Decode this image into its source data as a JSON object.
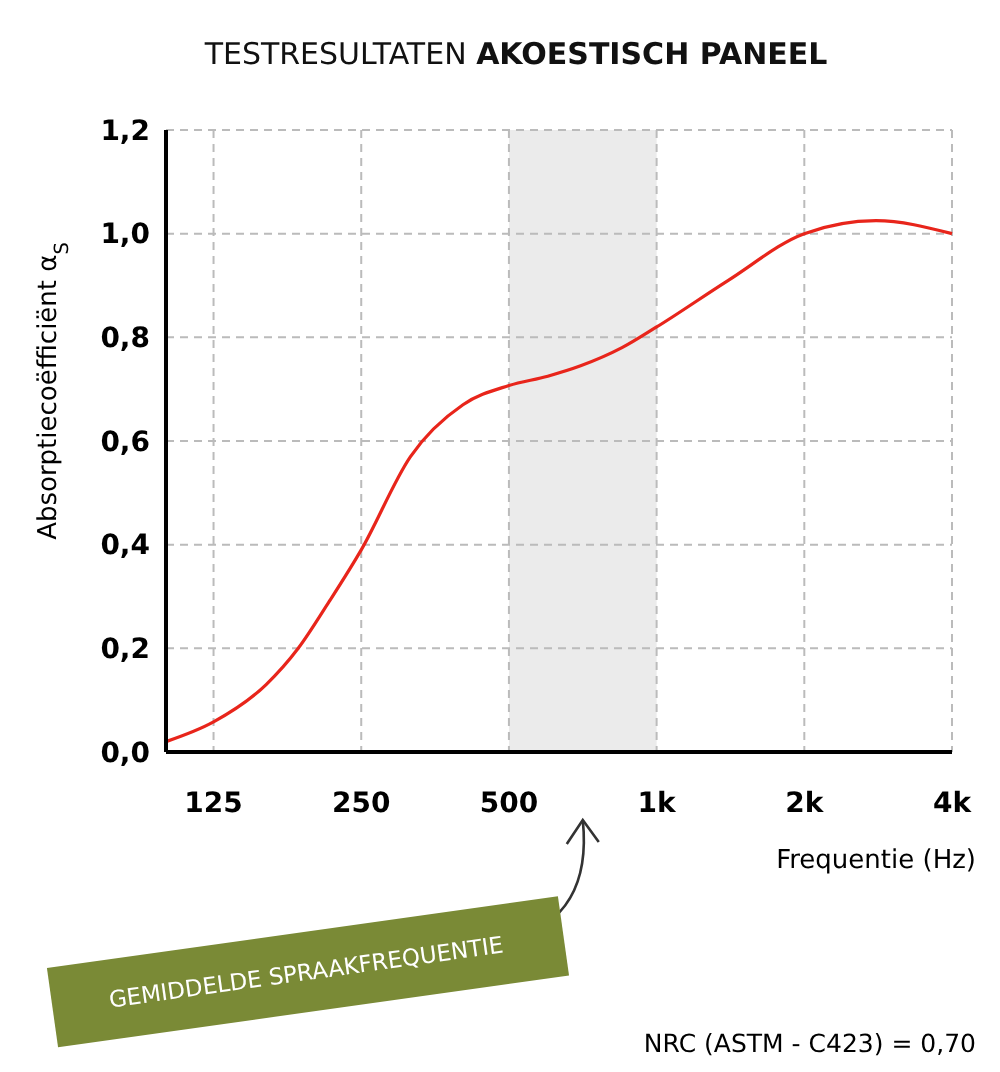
{
  "chart_data": {
    "type": "line",
    "title": "TESTRESULTATEN AKOESTISCH PANEEL",
    "xlabel": "Frequentie (Hz)",
    "ylabel": "Absorptiecoëfficiënt α$_{S}$",
    "log": "x",
    "grid": true,
    "xlim": [
      100,
      4000
    ],
    "ylim": [
      0,
      1.2
    ],
    "xticks": [
      125,
      250,
      500,
      {
        "value": 1000,
        "label": "1k"
      },
      {
        "value": 2000,
        "label": "2k"
      },
      {
        "value": 4000,
        "label": "4k"
      }
    ],
    "yticks": [
      {
        "value": 0,
        "label": "0,0"
      },
      {
        "value": 0.2,
        "label": "0,2"
      },
      {
        "value": 0.4,
        "label": "0,4"
      },
      {
        "value": 0.6,
        "label": "0,6"
      },
      {
        "value": 0.8,
        "label": "0,8"
      },
      {
        "value": 1,
        "label": "1,0"
      },
      {
        "value": 1.2,
        "label": "1,2"
      }
    ],
    "x": [
      100,
      125,
      160,
      186,
      215,
      250,
      315,
      403,
      500,
      600,
      700,
      850,
      1000,
      1400,
      2000,
      2800,
      4000
    ],
    "series": [
      {
        "color": "#e8251b",
        "values": [
          0.02,
          0.058,
          0.13,
          0.2,
          0.29,
          0.39,
          0.57,
          0.67,
          0.707,
          0.725,
          0.745,
          0.78,
          0.82,
          0.91,
          1.0,
          1.025,
          1.0
        ]
      }
    ],
    "bands": [
      {
        "axis": "x",
        "from": 500,
        "to": 1000,
        "label": "GEMIDDELDE SPRAAKFREQUENTIE",
        "color": "#ebebeb"
      }
    ],
    "annotations": [
      "NRC (ASTM - C423) = 0,70"
    ]
  }
}
